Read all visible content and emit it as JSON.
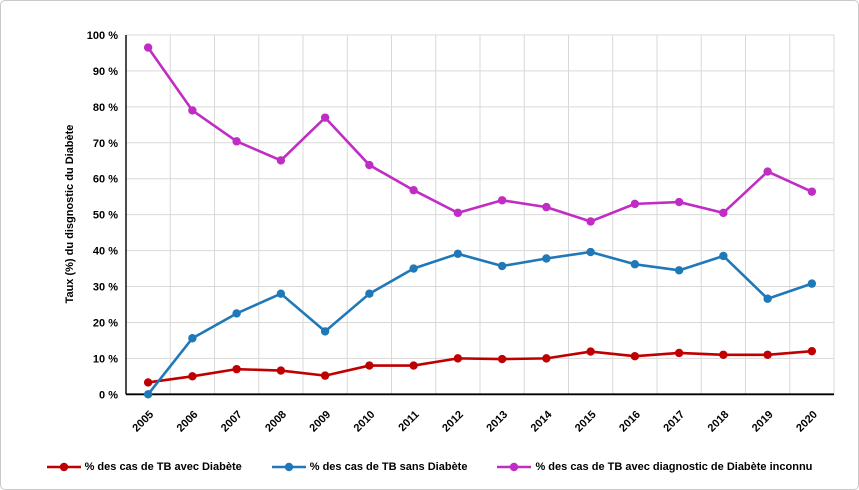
{
  "chart": {
    "ylabel": "Taux (%) du disgnostic du Diabète",
    "background": "#ffffff",
    "border_color": "#c9c9c9",
    "grid_color": "#d9d9d9",
    "axis_color": "#000000",
    "yticks": [
      "0 %",
      "10 %",
      "20 %",
      "30 %",
      "40 %",
      "50 %",
      "60 %",
      "70 %",
      "80 %",
      "90 %",
      "100 %"
    ]
  },
  "chart_data": {
    "type": "line",
    "title": "",
    "xlabel": "",
    "ylabel": "Taux (%) du disgnostic du Diabète",
    "ylim": [
      0,
      100
    ],
    "ytick_step": 10,
    "grid": true,
    "legend_position": "bottom",
    "categories": [
      "2005",
      "2006",
      "2007",
      "2008",
      "2009",
      "2010",
      "2011",
      "2012",
      "2013",
      "2014",
      "2015",
      "2016",
      "2017",
      "2018",
      "2019",
      "2020"
    ],
    "series": [
      {
        "name": "% des cas de TB avec Diabète",
        "color": "#C00000",
        "values": [
          3.3,
          5.0,
          7.0,
          6.6,
          5.2,
          8.0,
          8.0,
          10.0,
          9.8,
          10.0,
          11.9,
          10.6,
          11.5,
          11.0,
          11.0,
          12.0
        ]
      },
      {
        "name": "% des cas de TB sans Diabète",
        "color": "#1F78B8",
        "values": [
          0,
          15.6,
          22.5,
          28.0,
          17.5,
          28.0,
          35.0,
          39.1,
          35.7,
          37.8,
          39.6,
          36.2,
          34.5,
          38.5,
          26.6,
          30.8
        ]
      },
      {
        "name": "% des cas de TB avec diagnostic de Diabète inconnu",
        "color": "#C02DC4",
        "values": [
          96.5,
          79.0,
          70.4,
          65.1,
          77.0,
          63.8,
          56.8,
          50.5,
          54.0,
          52.1,
          48.1,
          53.0,
          53.5,
          50.5,
          62.0,
          56.4
        ]
      }
    ]
  }
}
